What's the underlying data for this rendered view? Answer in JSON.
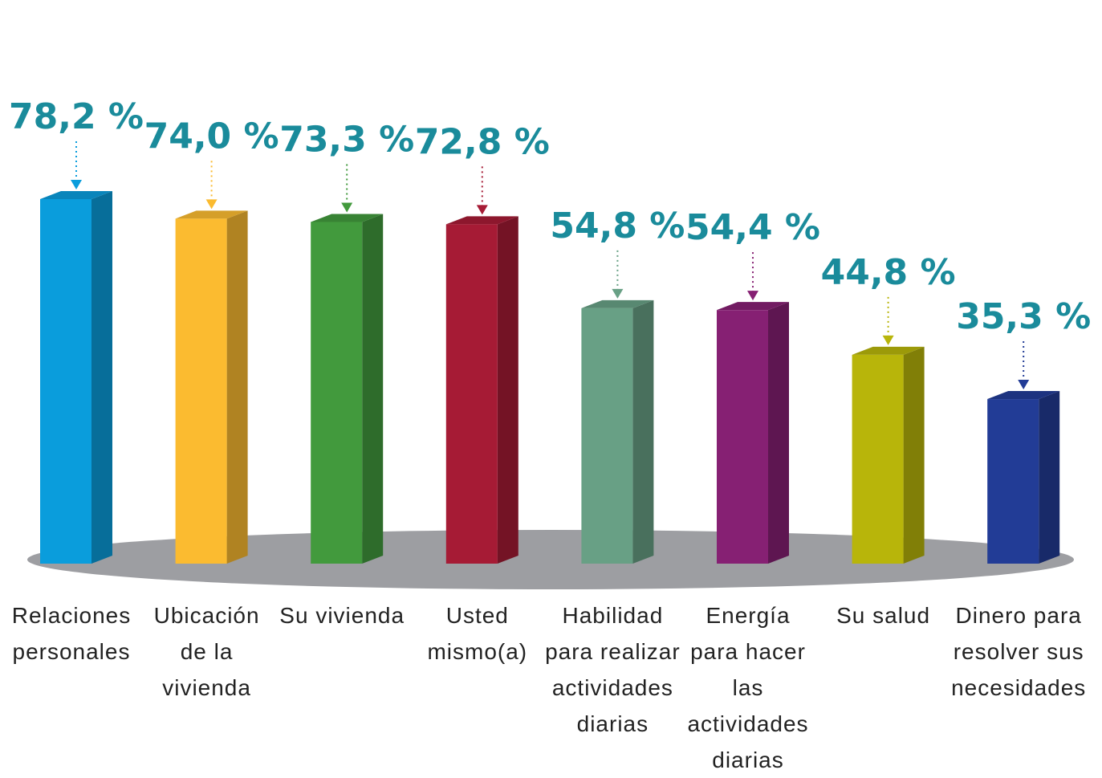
{
  "chart_data": {
    "type": "bar3d",
    "categories": [
      "Relaciones personales",
      "Ubicación de la vivienda",
      "Su vivienda",
      "Usted mismo(a)",
      "Habilidad para realizar actividades diarias",
      "Energía para hacer las actividades diarias",
      "Su salud",
      "Dinero para resolver sus necesidades"
    ],
    "values": [
      78.2,
      74.0,
      73.3,
      72.8,
      54.8,
      54.4,
      44.8,
      35.3
    ],
    "value_labels": [
      "78,2 %",
      "74,0 %",
      "73,3 %",
      "72,8 %",
      "54,8 %",
      "54,4 %",
      "44,8 %",
      "35,3 %"
    ],
    "colors": [
      "#0a9ddc",
      "#fbbb30",
      "#429a3d",
      "#a61b35",
      "#68a085",
      "#862073",
      "#b8b50a",
      "#223c96"
    ],
    "label_color": "#1a8b9b"
  }
}
